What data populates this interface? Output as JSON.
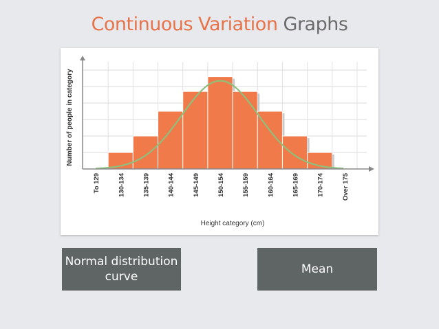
{
  "slide": {
    "title_part1": "Continuous Variation",
    "title_part2": "Graphs",
    "callout_normal": "Normal distribution curve",
    "callout_mean": "Mean"
  },
  "colors": {
    "bar": "#f07a4a",
    "curve": "#8fbf7c",
    "title_accent": "#e8734a",
    "callout_bg": "#5f6564"
  },
  "chart_data": {
    "type": "bar",
    "xlabel": "Height category (cm)",
    "ylabel": "Number of people in category",
    "categories": [
      "To 129",
      "130-134",
      "135-139",
      "140-144",
      "145-149",
      "150-154",
      "155-159",
      "160-164",
      "165-169",
      "170-174",
      "Over 175"
    ],
    "values": [
      0,
      1,
      2,
      3.5,
      4.7,
      5.6,
      4.7,
      3.5,
      2,
      1,
      0
    ],
    "ylim": [
      0,
      6.5
    ],
    "grid": true,
    "overlay": "normal distribution curve"
  }
}
